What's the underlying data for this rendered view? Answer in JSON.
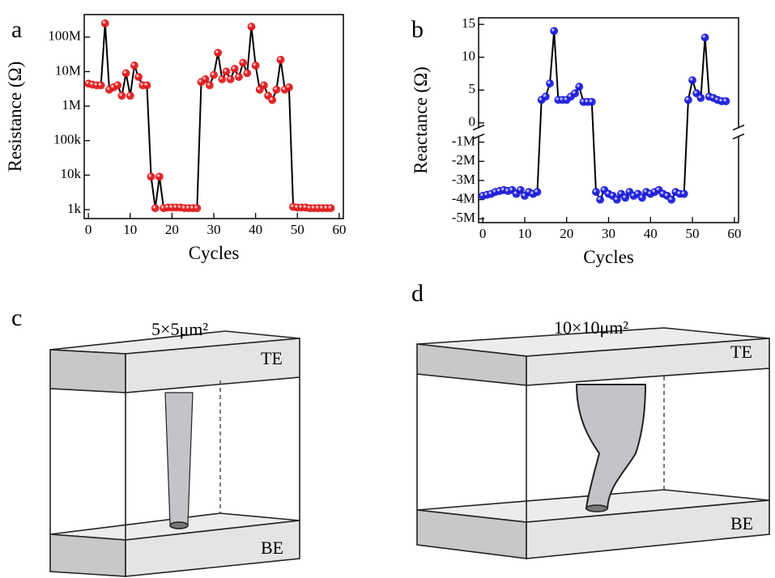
{
  "panels": {
    "a": "a",
    "b": "b",
    "c": "c",
    "d": "d"
  },
  "chart_data": [
    {
      "type": "line",
      "xlabel": "Cycles",
      "ylabel": "Resistance (Ω)",
      "log_y": true,
      "xlim": [
        -1,
        61
      ],
      "xticks": [
        0,
        10,
        20,
        30,
        40,
        50,
        60
      ],
      "ylim": [
        550,
        450000000
      ],
      "yticks": [
        {
          "value": 1000,
          "label": "1k"
        },
        {
          "value": 10000,
          "label": "10k"
        },
        {
          "value": 100000,
          "label": "100k"
        },
        {
          "value": 1000000,
          "label": "1M"
        },
        {
          "value": 10000000,
          "label": "10M"
        },
        {
          "value": 100000000,
          "label": "100M"
        }
      ],
      "line_color": "#000000",
      "x": [
        0,
        1,
        2,
        3,
        4,
        5,
        6,
        7,
        8,
        9,
        10,
        11,
        12,
        13,
        14,
        15,
        16,
        17,
        18,
        19,
        20,
        21,
        22,
        23,
        24,
        25,
        26,
        27,
        28,
        29,
        30,
        31,
        32,
        33,
        34,
        35,
        36,
        37,
        38,
        39,
        40,
        41,
        42,
        43,
        44,
        45,
        46,
        47,
        48,
        49,
        50,
        51,
        52,
        53,
        54,
        55,
        56,
        57,
        58
      ],
      "series": [
        {
          "color": "#e0191c",
          "values": [
            4500000,
            4200000,
            4000000,
            4000000,
            250000000,
            3000000,
            3500000,
            4000000,
            2000000,
            9000000,
            2000000,
            15000000,
            7000000,
            4000000,
            4000000,
            9000,
            1100,
            9000,
            1100,
            1150,
            1150,
            1150,
            1150,
            1100,
            1100,
            1100,
            1100,
            5000000,
            6000000,
            4000000,
            8000000,
            35000000,
            6000000,
            10000000,
            6000000,
            12000000,
            7000000,
            18000000,
            9000000,
            200000000,
            15000000,
            3000000,
            4000000,
            2000000,
            1500000,
            3000000,
            22000000,
            3000000,
            3500000,
            1200,
            1150,
            1150,
            1150,
            1100,
            1100,
            1100,
            1100,
            1100,
            1100
          ]
        }
      ]
    },
    {
      "type": "line",
      "xlabel": "Cycles",
      "ylabel": "Reactance (Ω)",
      "xlim": [
        -1,
        61
      ],
      "xticks": [
        0,
        10,
        20,
        30,
        40,
        50,
        60
      ],
      "ylim": [
        -5200000,
        16
      ],
      "ybreak": [
        -700000,
        -0.7
      ],
      "yticks": [
        0,
        5,
        10,
        15,
        {
          "value": -1000000,
          "label": "-1M"
        },
        {
          "value": -2000000,
          "label": "-2M"
        },
        {
          "value": -3000000,
          "label": "-3M"
        },
        {
          "value": -4000000,
          "label": "-4M"
        },
        {
          "value": -5000000,
          "label": "-5M"
        }
      ],
      "line_color": "#000000",
      "x": [
        0,
        1,
        2,
        3,
        4,
        5,
        6,
        7,
        8,
        9,
        10,
        11,
        12,
        13,
        14,
        15,
        16,
        17,
        18,
        19,
        20,
        21,
        22,
        23,
        24,
        25,
        26,
        27,
        28,
        29,
        30,
        31,
        32,
        33,
        34,
        35,
        36,
        37,
        38,
        39,
        40,
        41,
        42,
        43,
        44,
        45,
        46,
        47,
        48,
        49,
        50,
        51,
        52,
        53,
        54,
        55,
        56,
        57,
        58
      ],
      "series": [
        {
          "color": "#1a1adb",
          "values": [
            -3800000,
            -3750000,
            -3700000,
            -3600000,
            -3550000,
            -3500000,
            -3550000,
            -3500000,
            -3700000,
            -3500000,
            -3800000,
            -3600000,
            -3700000,
            -3600000,
            3.5,
            4,
            6,
            14,
            3.5,
            3.5,
            3.5,
            4,
            4.5,
            5.5,
            3.2,
            3.2,
            3.2,
            -3600000,
            -4000000,
            -3500000,
            -3700000,
            -3800000,
            -4000000,
            -3700000,
            -3900000,
            -3600000,
            -3800000,
            -3700000,
            -3900000,
            -3600000,
            -3700000,
            -3600000,
            -3500000,
            -3700000,
            -3800000,
            -4000000,
            -3600000,
            -3700000,
            -3700000,
            3.5,
            6.5,
            4.5,
            3.8,
            13,
            4,
            3.8,
            3.5,
            3.3,
            3.3
          ]
        }
      ]
    }
  ],
  "diagrams": [
    {
      "area": "5×5μm²",
      "top": "TE",
      "bottom": "BE"
    },
    {
      "area": "10×10μm²",
      "top": "TE",
      "bottom": "BE"
    }
  ]
}
